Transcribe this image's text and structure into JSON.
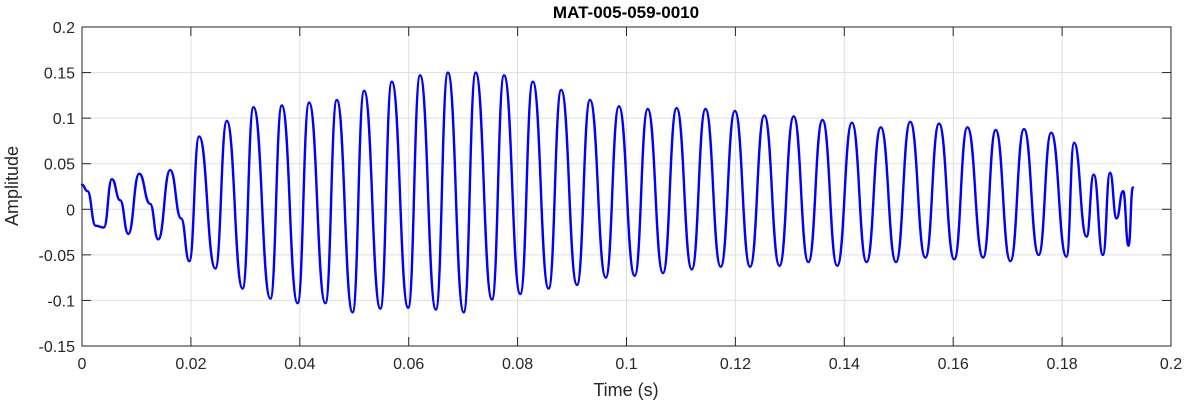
{
  "chart_data": {
    "type": "line",
    "title": "MAT-005-059-0010",
    "xlabel": "Time (s)",
    "ylabel": "Amplitude",
    "xlim": [
      0,
      0.2
    ],
    "ylim": [
      -0.15,
      0.2
    ],
    "xticks": [
      0,
      0.02,
      0.04,
      0.06,
      0.08,
      0.1,
      0.12,
      0.14,
      0.16,
      0.18,
      0.2
    ],
    "xtick_labels": [
      "0",
      "0.02",
      "0.04",
      "0.06",
      "0.08",
      "0.1",
      "0.12",
      "0.14",
      "0.16",
      "0.18",
      "0.2"
    ],
    "yticks": [
      -0.15,
      -0.1,
      -0.05,
      0,
      0.05,
      0.1,
      0.15,
      0.2
    ],
    "ytick_labels": [
      "-0.15",
      "-0.1",
      "-0.05",
      "0",
      "0.05",
      "0.1",
      "0.15",
      "0.2"
    ],
    "grid": true,
    "line_color": "#0000ff",
    "series": [
      {
        "x": [
          0,
          0.001,
          0.0025,
          0.004,
          0.0055,
          0.007,
          0.0085,
          0.0105,
          0.0125,
          0.014,
          0.0162,
          0.0182,
          0.0197,
          0.0215,
          0.0245,
          0.0266,
          0.0295,
          0.0315,
          0.0346,
          0.0367,
          0.0396,
          0.0417,
          0.0447,
          0.0468,
          0.0497,
          0.0518,
          0.0548,
          0.0569,
          0.0599,
          0.0621,
          0.065,
          0.0672,
          0.0701,
          0.0723,
          0.0753,
          0.0775,
          0.0805,
          0.0828,
          0.0857,
          0.088,
          0.0909,
          0.0933,
          0.0962,
          0.0986,
          0.1015,
          0.1039,
          0.1067,
          0.1092,
          0.112,
          0.1145,
          0.1173,
          0.1199,
          0.1227,
          0.1253,
          0.1281,
          0.1307,
          0.1334,
          0.136,
          0.1387,
          0.1414,
          0.1441,
          0.1467,
          0.1495,
          0.1521,
          0.1549,
          0.1574,
          0.1602,
          0.1626,
          0.1655,
          0.1678,
          0.1705,
          0.173,
          0.1757,
          0.178,
          0.1808,
          0.1822,
          0.1845,
          0.1858,
          0.1875,
          0.1888,
          0.19,
          0.1912,
          0.1922,
          0.193
        ],
        "y": [
          0.027,
          0.02,
          -0.018,
          -0.02,
          0.033,
          0.01,
          -0.027,
          0.039,
          0.006,
          -0.033,
          0.043,
          -0.01,
          -0.057,
          0.08,
          -0.065,
          0.097,
          -0.087,
          0.112,
          -0.098,
          0.114,
          -0.103,
          0.117,
          -0.103,
          0.12,
          -0.113,
          0.13,
          -0.109,
          0.14,
          -0.108,
          0.147,
          -0.11,
          0.15,
          -0.113,
          0.15,
          -0.099,
          0.147,
          -0.093,
          0.14,
          -0.087,
          0.131,
          -0.083,
          0.12,
          -0.075,
          0.113,
          -0.073,
          0.11,
          -0.07,
          0.111,
          -0.066,
          0.11,
          -0.063,
          0.108,
          -0.063,
          0.103,
          -0.062,
          0.102,
          -0.058,
          0.098,
          -0.062,
          0.095,
          -0.058,
          0.09,
          -0.058,
          0.096,
          -0.053,
          0.094,
          -0.055,
          0.09,
          -0.053,
          0.087,
          -0.057,
          0.088,
          -0.05,
          0.084,
          -0.052,
          0.073,
          -0.03,
          0.038,
          -0.05,
          0.04,
          -0.01,
          0.02,
          -0.04,
          0.024
        ]
      }
    ]
  }
}
